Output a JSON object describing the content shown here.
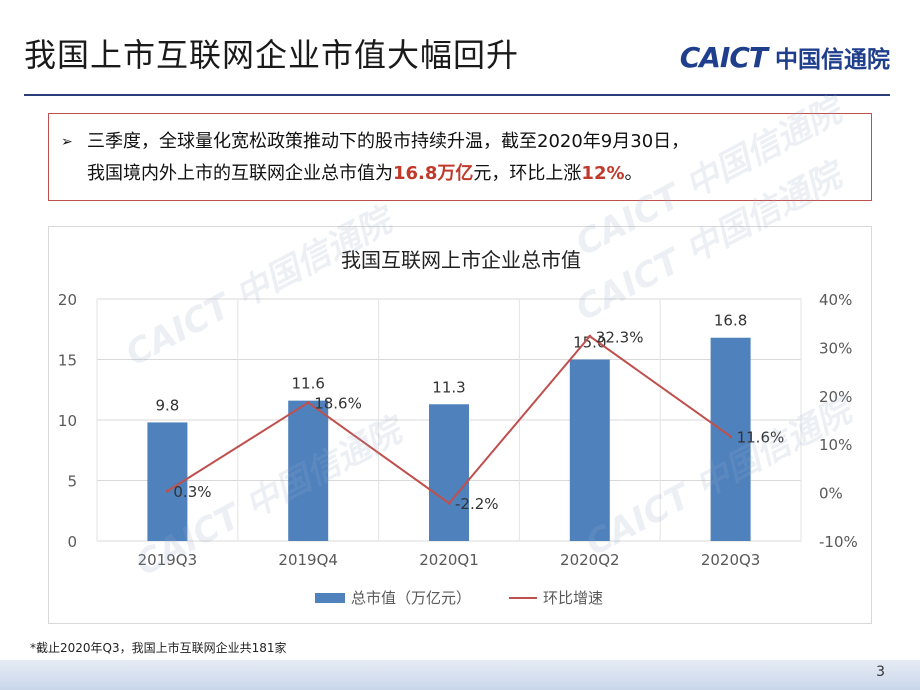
{
  "slide": {
    "title": "我国上市互联网企业市值大幅回升",
    "logo_en": "CAICT",
    "logo_cn": "中国信通院",
    "watermark": "CAICT 中国信通院",
    "page_number": "3",
    "footnote": "*截止2020年Q3，我国上市互联网企业共181家"
  },
  "callout": {
    "bullet": "➢",
    "line1": "三季度，全球量化宽松政策推动下的股市持续升温，截至2020年9月30日，",
    "line2_a": "我国境内外上市的互联网企业总市值为",
    "line2_hl1": "16.8万亿",
    "line2_b": "元，环比上涨",
    "line2_hl2": "12%",
    "line2_c": "。"
  },
  "colors": {
    "bar": "#4f81bd",
    "line": "#c0504d",
    "highlight": "#c0392b",
    "rule": "#2a3f7a"
  },
  "chart_data": {
    "type": "bar",
    "title": "我国互联网上市企业总市值",
    "categories": [
      "2019Q3",
      "2019Q4",
      "2020Q1",
      "2020Q2",
      "2020Q3"
    ],
    "series": [
      {
        "name": "总市值（万亿元）",
        "type": "bar",
        "axis": "left",
        "values": [
          9.8,
          11.6,
          11.3,
          15.0,
          16.8
        ],
        "labels": [
          "9.8",
          "11.6",
          "11.3",
          "15.0",
          "16.8"
        ]
      },
      {
        "name": "环比增速",
        "type": "line",
        "axis": "right",
        "values": [
          0.3,
          18.6,
          -2.2,
          32.3,
          11.6
        ],
        "labels": [
          "0.3%",
          "18.6%",
          "-2.2%",
          "32.3%",
          "11.6%"
        ]
      }
    ],
    "ylim_left": [
      0,
      20
    ],
    "yticks_left": [
      "0",
      "5",
      "10",
      "15",
      "20"
    ],
    "ylim_right": [
      -10,
      40
    ],
    "yticks_right": [
      "-10%",
      "0%",
      "10%",
      "20%",
      "30%",
      "40%"
    ],
    "grid": true,
    "legend": "bottom"
  }
}
